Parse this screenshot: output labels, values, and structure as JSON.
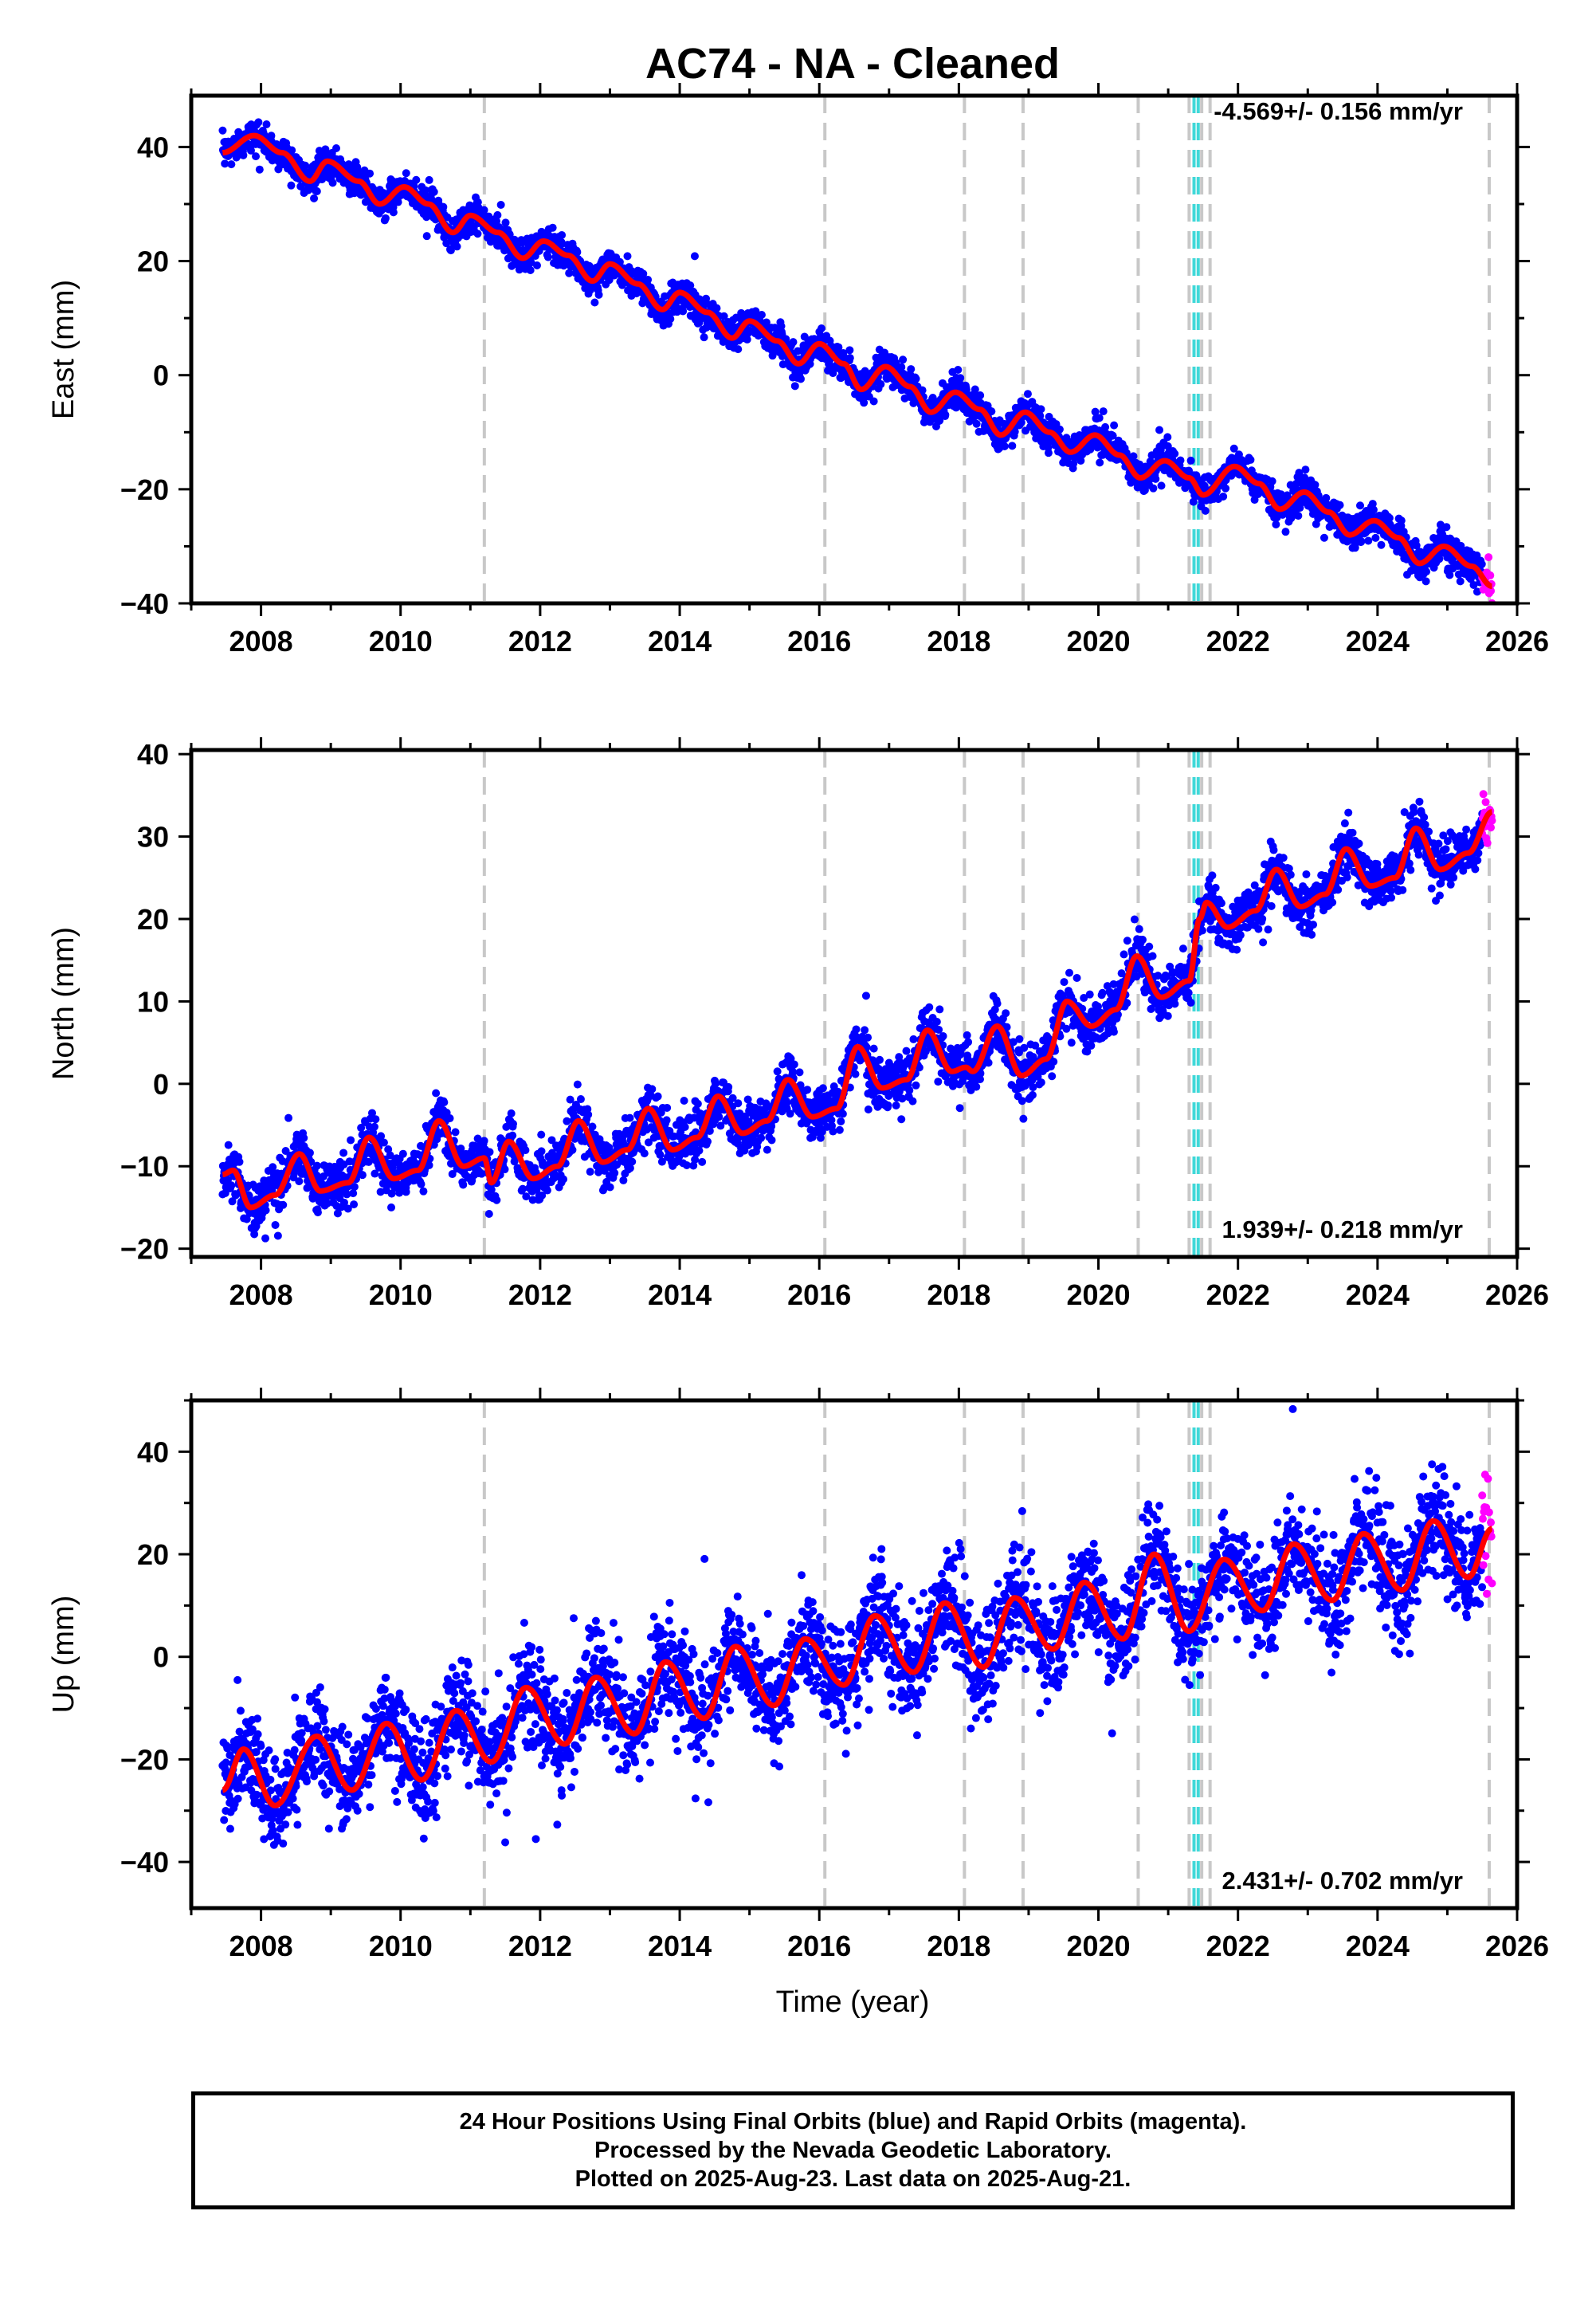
{
  "title": "AC74  - NA - Cleaned",
  "x_axis_label": "Time (year)",
  "footer": {
    "line1": "24 Hour Positions Using Final Orbits (blue) and Rapid Orbits (magenta).",
    "line2": "Processed by the Nevada Geodetic Laboratory.",
    "line3": "Plotted on 2025-Aug-23. Last data on 2025-Aug-21."
  },
  "colors": {
    "final_orbits": "#0000ff",
    "rapid_orbits": "#ff00ff",
    "model_fit": "#ff0000",
    "equipment_change": "#c8c8c8",
    "earthquake": "#40d8d8"
  },
  "chart_data": [
    {
      "type": "scatter",
      "component": "east",
      "ylabel": "East (mm)",
      "xlim": [
        2007.0,
        2026.0
      ],
      "ylim": [
        -40,
        49
      ],
      "xticks": [
        2008,
        2010,
        2012,
        2014,
        2016,
        2018,
        2020,
        2022,
        2024,
        2026
      ],
      "yticks": [
        -40,
        -20,
        0,
        20,
        40
      ],
      "rate_text": "-4.569+/- 0.156 mm/yr",
      "rate_mm_per_yr": -4.569,
      "rate_uncertainty": 0.156,
      "data_start": 2007.45,
      "data_end": 2025.64,
      "rapid_start": 2025.5,
      "seasonal_amplitude": 2.0,
      "seasonal_phase": 0.9,
      "noise_mm": 1.4,
      "model_points": [
        [
          2007.45,
          39
        ],
        [
          2007.9,
          42
        ],
        [
          2008.3,
          39
        ],
        [
          2008.7,
          34
        ],
        [
          2008.95,
          37.5
        ],
        [
          2009.4,
          34
        ],
        [
          2009.7,
          30
        ],
        [
          2010.05,
          33
        ],
        [
          2010.4,
          30
        ],
        [
          2010.75,
          25
        ],
        [
          2011.0,
          28
        ],
        [
          2011.4,
          25
        ],
        [
          2011.75,
          20.5
        ],
        [
          2012.05,
          23.5
        ],
        [
          2012.4,
          21
        ],
        [
          2012.75,
          16.5
        ],
        [
          2013.0,
          19.5
        ],
        [
          2013.4,
          16
        ],
        [
          2013.75,
          11.5
        ],
        [
          2014.0,
          14.5
        ],
        [
          2014.4,
          11
        ],
        [
          2014.75,
          6.5
        ],
        [
          2015.0,
          9.5
        ],
        [
          2015.4,
          6
        ],
        [
          2015.7,
          2
        ],
        [
          2016.0,
          5.5
        ],
        [
          2016.35,
          2
        ],
        [
          2016.6,
          -2.5
        ],
        [
          2016.95,
          1.5
        ],
        [
          2017.3,
          -2
        ],
        [
          2017.6,
          -6.5
        ],
        [
          2017.95,
          -3
        ],
        [
          2018.3,
          -6
        ],
        [
          2018.6,
          -10.5
        ],
        [
          2018.95,
          -6.5
        ],
        [
          2019.3,
          -10
        ],
        [
          2019.6,
          -13.5
        ],
        [
          2019.95,
          -10.5
        ],
        [
          2020.3,
          -14
        ],
        [
          2020.6,
          -18
        ],
        [
          2020.95,
          -15
        ],
        [
          2021.3,
          -18
        ],
        [
          2021.5,
          -21
        ],
        [
          2021.95,
          -16
        ],
        [
          2022.3,
          -19
        ],
        [
          2022.6,
          -23.5
        ],
        [
          2022.95,
          -20.5
        ],
        [
          2023.3,
          -24
        ],
        [
          2023.6,
          -28
        ],
        [
          2023.95,
          -25.5
        ],
        [
          2024.3,
          -28.5
        ],
        [
          2024.6,
          -33
        ],
        [
          2024.95,
          -30
        ],
        [
          2025.35,
          -33.5
        ],
        [
          2025.64,
          -37
        ]
      ]
    },
    {
      "type": "scatter",
      "component": "north",
      "ylabel": "North (mm)",
      "xlim": [
        2007.0,
        2026.0
      ],
      "ylim": [
        -21,
        40.5
      ],
      "xticks": [
        2008,
        2010,
        2012,
        2014,
        2016,
        2018,
        2020,
        2022,
        2024,
        2026
      ],
      "yticks": [
        -20,
        -10,
        0,
        10,
        20,
        30,
        40
      ],
      "rate_text": "1.939+/- 0.218 mm/yr",
      "rate_mm_per_yr": 1.939,
      "rate_uncertainty": 0.218,
      "data_start": 2007.45,
      "data_end": 2025.64,
      "rapid_start": 2025.5,
      "seasonal_amplitude": 3.0,
      "seasonal_phase": 0.55,
      "noise_mm": 1.6,
      "model_points": [
        [
          2007.45,
          -11
        ],
        [
          2007.6,
          -10.5
        ],
        [
          2007.85,
          -15
        ],
        [
          2008.2,
          -13.5
        ],
        [
          2008.55,
          -8.5
        ],
        [
          2008.85,
          -13
        ],
        [
          2009.25,
          -12
        ],
        [
          2009.55,
          -6.5
        ],
        [
          2009.9,
          -11.5
        ],
        [
          2010.25,
          -10.5
        ],
        [
          2010.55,
          -4.5
        ],
        [
          2010.9,
          -10
        ],
        [
          2011.2,
          -9
        ],
        [
          2011.3,
          -12
        ],
        [
          2011.55,
          -7
        ],
        [
          2011.9,
          -11.5
        ],
        [
          2012.25,
          -10
        ],
        [
          2012.55,
          -4.5
        ],
        [
          2012.9,
          -9.5
        ],
        [
          2013.25,
          -8
        ],
        [
          2013.55,
          -3
        ],
        [
          2013.9,
          -8
        ],
        [
          2014.25,
          -6.5
        ],
        [
          2014.55,
          -1.5
        ],
        [
          2014.9,
          -6
        ],
        [
          2015.25,
          -4.5
        ],
        [
          2015.55,
          0.5
        ],
        [
          2015.9,
          -4
        ],
        [
          2016.25,
          -3
        ],
        [
          2016.55,
          4.5
        ],
        [
          2016.9,
          -0.5
        ],
        [
          2017.25,
          0.5
        ],
        [
          2017.55,
          6.5
        ],
        [
          2017.9,
          1.5
        ],
        [
          2018.1,
          2
        ],
        [
          2018.2,
          1.5
        ],
        [
          2018.55,
          7
        ],
        [
          2018.9,
          1
        ],
        [
          2019.25,
          3
        ],
        [
          2019.55,
          10
        ],
        [
          2019.9,
          7
        ],
        [
          2020.25,
          9
        ],
        [
          2020.55,
          15.5
        ],
        [
          2020.9,
          10.5
        ],
        [
          2021.3,
          12.5
        ],
        [
          2021.45,
          20
        ],
        [
          2021.55,
          22
        ],
        [
          2021.85,
          19
        ],
        [
          2022.25,
          21
        ],
        [
          2022.55,
          26
        ],
        [
          2022.9,
          21.5
        ],
        [
          2023.25,
          23
        ],
        [
          2023.55,
          28.5
        ],
        [
          2023.9,
          24
        ],
        [
          2024.25,
          25
        ],
        [
          2024.55,
          31
        ],
        [
          2024.9,
          26
        ],
        [
          2025.3,
          28
        ],
        [
          2025.64,
          33
        ]
      ]
    },
    {
      "type": "scatter",
      "component": "up",
      "ylabel": "Up (mm)",
      "xlim": [
        2007.0,
        2026.0
      ],
      "ylim": [
        -49,
        50
      ],
      "xticks": [
        2008,
        2010,
        2012,
        2014,
        2016,
        2018,
        2020,
        2022,
        2024,
        2026
      ],
      "yticks": [
        -40,
        -20,
        0,
        20,
        40
      ],
      "rate_text": "2.431+/- 0.702 mm/yr",
      "rate_mm_per_yr": 2.431,
      "rate_uncertainty": 0.702,
      "data_start": 2007.45,
      "data_end": 2025.64,
      "rapid_start": 2025.5,
      "seasonal_amplitude": 6.0,
      "seasonal_phase": 0.8,
      "noise_mm": 5.0,
      "model_points": [
        [
          2007.45,
          -26
        ],
        [
          2007.75,
          -18
        ],
        [
          2008.2,
          -29
        ],
        [
          2008.8,
          -15.5
        ],
        [
          2009.3,
          -26
        ],
        [
          2009.8,
          -13
        ],
        [
          2010.3,
          -24
        ],
        [
          2010.8,
          -10.5
        ],
        [
          2011.3,
          -20.5
        ],
        [
          2011.8,
          -6
        ],
        [
          2012.35,
          -17
        ],
        [
          2012.8,
          -4
        ],
        [
          2013.35,
          -15
        ],
        [
          2013.8,
          -1
        ],
        [
          2014.35,
          -12
        ],
        [
          2014.8,
          2
        ],
        [
          2015.35,
          -9.5
        ],
        [
          2015.8,
          3.5
        ],
        [
          2016.35,
          -5.5
        ],
        [
          2016.8,
          8
        ],
        [
          2017.35,
          -3
        ],
        [
          2017.8,
          10.5
        ],
        [
          2018.35,
          -2
        ],
        [
          2018.8,
          11.5
        ],
        [
          2019.35,
          1.5
        ],
        [
          2019.8,
          14.5
        ],
        [
          2020.35,
          3.5
        ],
        [
          2020.8,
          20
        ],
        [
          2021.3,
          5
        ],
        [
          2021.8,
          19
        ],
        [
          2022.35,
          9
        ],
        [
          2022.8,
          22
        ],
        [
          2023.35,
          11
        ],
        [
          2023.8,
          24
        ],
        [
          2024.35,
          13
        ],
        [
          2024.8,
          26.5
        ],
        [
          2025.3,
          15.5
        ],
        [
          2025.64,
          25
        ]
      ]
    }
  ],
  "equipment_change_years": [
    2011.2,
    2016.08,
    2018.08,
    2018.92,
    2020.57,
    2021.3,
    2021.48,
    2021.6,
    2025.6
  ],
  "earthquake_years": [
    2021.37,
    2021.43
  ]
}
